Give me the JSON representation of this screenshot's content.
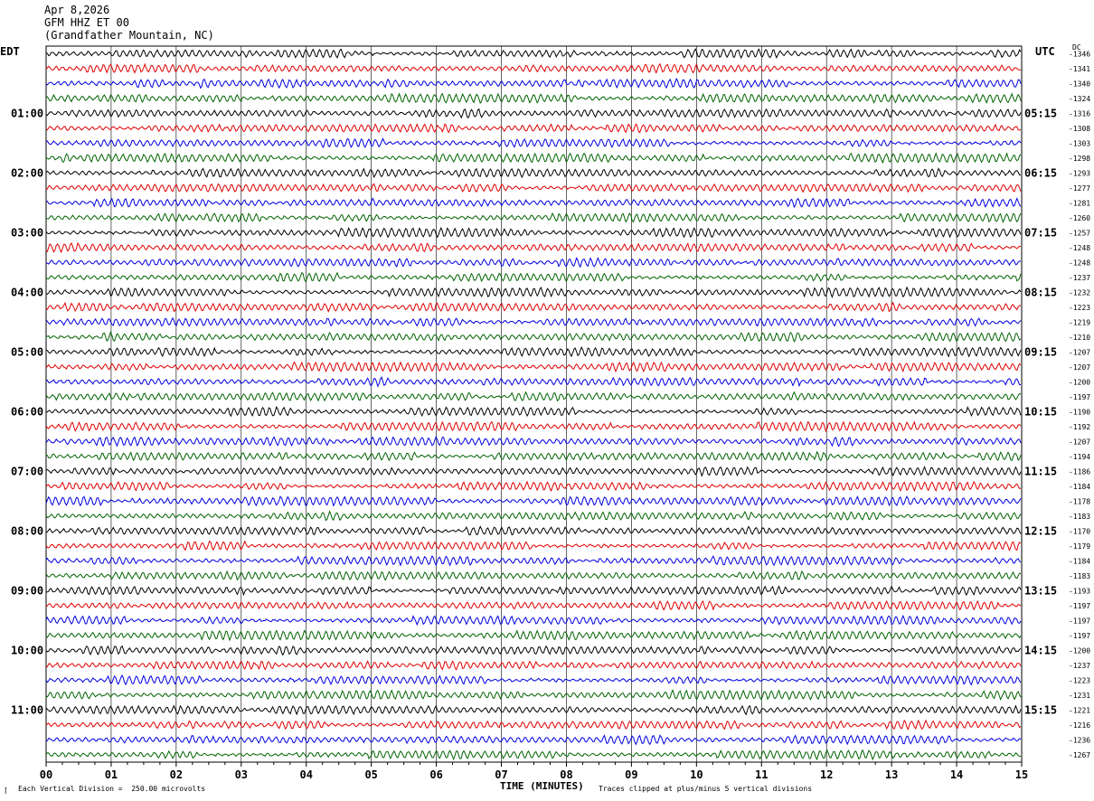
{
  "header": {
    "date": "Apr 8,2026",
    "station": "GFM HHZ ET 00",
    "location": "(Grandfather Mountain, NC)"
  },
  "left_tz": "EDT",
  "right_tz": "UTC",
  "right_col_title": "DC",
  "footer": {
    "scale": "Each Vertical Division =  250.00 microvolts",
    "xlabel": "TIME (MINUTES)",
    "clip_note": "Traces clipped at plus/minus 5 vertical divisions"
  },
  "chart_data": {
    "type": "line",
    "subtype": "helicorder",
    "x_ticks": [
      "00",
      "01",
      "02",
      "03",
      "04",
      "05",
      "06",
      "07",
      "08",
      "09",
      "10",
      "11",
      "12",
      "13",
      "14",
      "15"
    ],
    "xlim": [
      0,
      15
    ],
    "grid": "vertical",
    "trace_colors": [
      "#000000",
      "#e00000",
      "#0000e0",
      "#006400"
    ],
    "hour_labels": [
      {
        "row": 4,
        "edt": "01:00",
        "utc": "05:15"
      },
      {
        "row": 8,
        "edt": "02:00",
        "utc": "06:15"
      },
      {
        "row": 12,
        "edt": "03:00",
        "utc": "07:15"
      },
      {
        "row": 16,
        "edt": "04:00",
        "utc": "08:15"
      },
      {
        "row": 20,
        "edt": "05:00",
        "utc": "09:15"
      },
      {
        "row": 24,
        "edt": "06:00",
        "utc": "10:15"
      },
      {
        "row": 28,
        "edt": "07:00",
        "utc": "11:15"
      },
      {
        "row": 32,
        "edt": "08:00",
        "utc": "12:15"
      },
      {
        "row": 36,
        "edt": "09:00",
        "utc": "13:15"
      },
      {
        "row": 40,
        "edt": "10:00",
        "utc": "14:15"
      },
      {
        "row": 44,
        "edt": "11:00",
        "utc": "15:15"
      }
    ],
    "dc_values": [
      -1346,
      -1341,
      -1340,
      -1324,
      -1316,
      -1308,
      -1303,
      -1298,
      -1293,
      -1277,
      -1281,
      -1260,
      -1257,
      -1248,
      -1248,
      -1237,
      -1232,
      -1223,
      -1219,
      -1210,
      -1207,
      -1207,
      -1200,
      -1197,
      -1190,
      -1192,
      -1207,
      -1194,
      -1186,
      -1184,
      -1178,
      -1183,
      -1170,
      -1179,
      -1184,
      -1183,
      -1193,
      -1197,
      -1197,
      -1197,
      -1200,
      -1237,
      -1223,
      -1231,
      -1221,
      -1216,
      -1236,
      -1267
    ]
  }
}
